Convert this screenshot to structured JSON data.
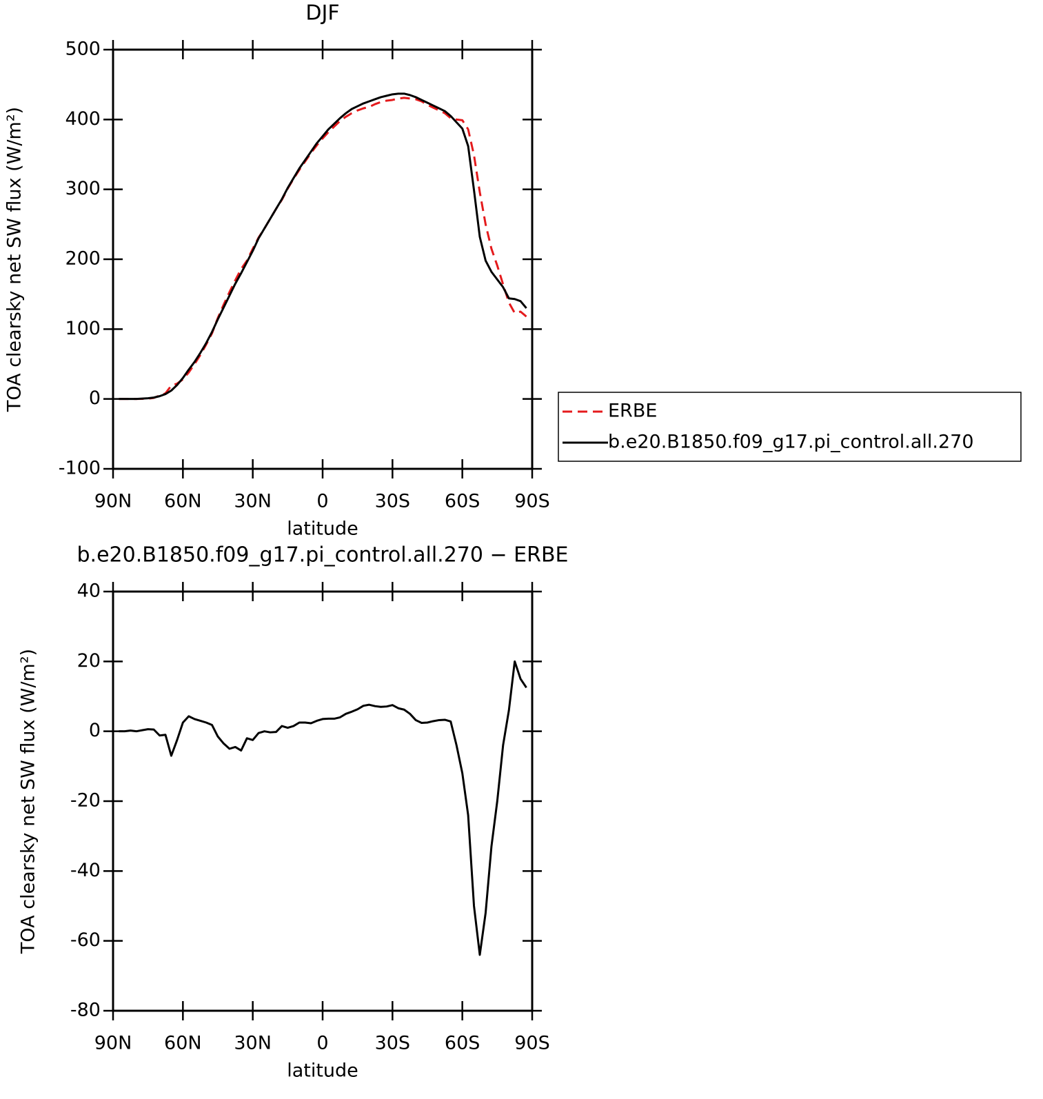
{
  "chart_data": [
    {
      "type": "line",
      "title": "DJF",
      "xlabel": "latitude",
      "ylabel": "TOA clearsky net SW flux (W/m²)",
      "x": [
        87.5,
        85,
        82.5,
        80,
        77.5,
        75,
        72.5,
        70,
        67.5,
        65,
        62.5,
        60,
        57.5,
        55,
        52.5,
        50,
        47.5,
        45,
        42.5,
        40,
        37.5,
        35,
        32.5,
        30,
        27.5,
        25,
        22.5,
        20,
        17.5,
        15,
        12.5,
        10,
        7.5,
        5,
        2.5,
        0,
        -2.5,
        -5,
        -7.5,
        -10,
        -12.5,
        -15,
        -17.5,
        -20,
        -22.5,
        -25,
        -27.5,
        -30,
        -32.5,
        -35,
        -37.5,
        -40,
        -42.5,
        -45,
        -47.5,
        -50,
        -52.5,
        -55,
        -57.5,
        -60,
        -62.5,
        -65,
        -67.5,
        -70,
        -72.5,
        -75,
        -77.5,
        -80,
        -82.5,
        -85,
        -87.5
      ],
      "xlim": [
        90,
        -90
      ],
      "xticks": [
        {
          "value": 90,
          "label": "90N"
        },
        {
          "value": 60,
          "label": "60N"
        },
        {
          "value": 30,
          "label": "30N"
        },
        0,
        {
          "value": -30,
          "label": "30S"
        },
        {
          "value": -60,
          "label": "60S"
        },
        {
          "value": -90,
          "label": "90S"
        }
      ],
      "ylim": [
        -100,
        500
      ],
      "yticks": [
        -100,
        0,
        100,
        200,
        300,
        400,
        500
      ],
      "legend_position": "right",
      "series": [
        {
          "name": "ERBE",
          "color": "#e41a1c",
          "dashed": true,
          "values": [
            0,
            0,
            0,
            0,
            0.2,
            0.4,
            1.5,
            5,
            8,
            19,
            22,
            28,
            38,
            50,
            63,
            78,
            94,
            116,
            135,
            153,
            170,
            186,
            198,
            215,
            231,
            244,
            258,
            272,
            285,
            301,
            315,
            328,
            340,
            352,
            363,
            373,
            382,
            390,
            398,
            404,
            409,
            413,
            416,
            418,
            422,
            425,
            427,
            428,
            430,
            431,
            430,
            429,
            426,
            421,
            417,
            413,
            409,
            402,
            400,
            399,
            386,
            349,
            296,
            250,
            215,
            191,
            164,
            138,
            123,
            125,
            118
          ]
        },
        {
          "name": "b.e20.B1850.f09_g17.pi_control.all.270",
          "color": "#000000",
          "dashed": false,
          "values": [
            0,
            0,
            0,
            0,
            0.5,
            1,
            2,
            4,
            7,
            12,
            20,
            30,
            42,
            53,
            66,
            80,
            96,
            114,
            131,
            148,
            165,
            180,
            196,
            212,
            230,
            244,
            258,
            272,
            286,
            302,
            316,
            330,
            342,
            354,
            366,
            376,
            386,
            394,
            402,
            409,
            415,
            419,
            423,
            426,
            429,
            432,
            434,
            436,
            437,
            437,
            435,
            432,
            428,
            424,
            420,
            416,
            412,
            405,
            396,
            387,
            362,
            299,
            232,
            198,
            182,
            171,
            160,
            144,
            143,
            140,
            130
          ]
        }
      ]
    },
    {
      "type": "line",
      "title": "b.e20.B1850.f09_g17.pi_control.all.270 − ERBE",
      "xlabel": "latitude",
      "ylabel": "TOA clearsky net SW flux (W/m²)",
      "x": [
        87.5,
        85,
        82.5,
        80,
        77.5,
        75,
        72.5,
        70,
        67.5,
        65,
        62.5,
        60,
        57.5,
        55,
        52.5,
        50,
        47.5,
        45,
        42.5,
        40,
        37.5,
        35,
        32.5,
        30,
        27.5,
        25,
        22.5,
        20,
        17.5,
        15,
        12.5,
        10,
        7.5,
        5,
        2.5,
        0,
        -2.5,
        -5,
        -7.5,
        -10,
        -12.5,
        -15,
        -17.5,
        -20,
        -22.5,
        -25,
        -27.5,
        -30,
        -32.5,
        -35,
        -37.5,
        -40,
        -42.5,
        -45,
        -47.5,
        -50,
        -52.5,
        -55,
        -57.5,
        -60,
        -62.5,
        -65,
        -67.5,
        -70,
        -72.5,
        -75,
        -77.5,
        -80,
        -82.5,
        -85,
        -87.5
      ],
      "xlim": [
        90,
        -90
      ],
      "xticks": [
        {
          "value": 90,
          "label": "90N"
        },
        {
          "value": 60,
          "label": "60N"
        },
        {
          "value": 30,
          "label": "30N"
        },
        0,
        {
          "value": -30,
          "label": "30S"
        },
        {
          "value": -60,
          "label": "60S"
        },
        {
          "value": -90,
          "label": "90S"
        }
      ],
      "ylim": [
        -80,
        40
      ],
      "yticks": [
        -80,
        -60,
        -40,
        -20,
        0,
        20,
        40
      ],
      "series": [
        {
          "color": "#000000",
          "dashed": false,
          "values": [
            0,
            0,
            0.2,
            0,
            0.3,
            0.6,
            0.5,
            -1.2,
            -1,
            -7,
            -2.5,
            2.5,
            4.3,
            3.5,
            3,
            2.5,
            1.8,
            -1.5,
            -3.5,
            -5,
            -4.5,
            -5.5,
            -2,
            -2.5,
            -0.5,
            0,
            -0.3,
            -0.2,
            1.5,
            1,
            1.5,
            2.5,
            2.5,
            2.3,
            3,
            3.5,
            3.6,
            3.6,
            4,
            5,
            5.6,
            6.3,
            7.3,
            7.6,
            7.2,
            7,
            7.1,
            7.5,
            6.6,
            6.2,
            5,
            3.2,
            2.4,
            2.5,
            2.9,
            3.2,
            3.3,
            2.8,
            -4,
            -12,
            -24,
            -50,
            -64,
            -52,
            -33,
            -20,
            -4,
            6,
            20,
            15,
            12.5
          ]
        }
      ]
    }
  ]
}
